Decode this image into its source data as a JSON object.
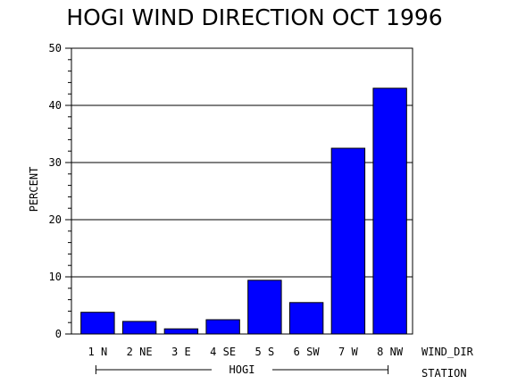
{
  "chart_data": {
    "type": "bar",
    "title": "HOGI WIND DIRECTION OCT 1996",
    "ylabel": "PERCENT",
    "xlabel": "WIND_DIR",
    "group_axis_label": "STATION",
    "group_label": "HOGI",
    "categories": [
      "1 N",
      "2 NE",
      "3 E",
      "4 SE",
      "5 S",
      "6 SW",
      "7 W",
      "8 NW"
    ],
    "values": [
      3.8,
      2.2,
      0.9,
      2.5,
      9.4,
      5.5,
      32.5,
      43.0
    ],
    "ylim": [
      0,
      50
    ],
    "yticks": [
      "0",
      "10",
      "20",
      "30",
      "40",
      "50"
    ],
    "grid": true,
    "bar_color": "#0000ff",
    "legend": "none"
  }
}
